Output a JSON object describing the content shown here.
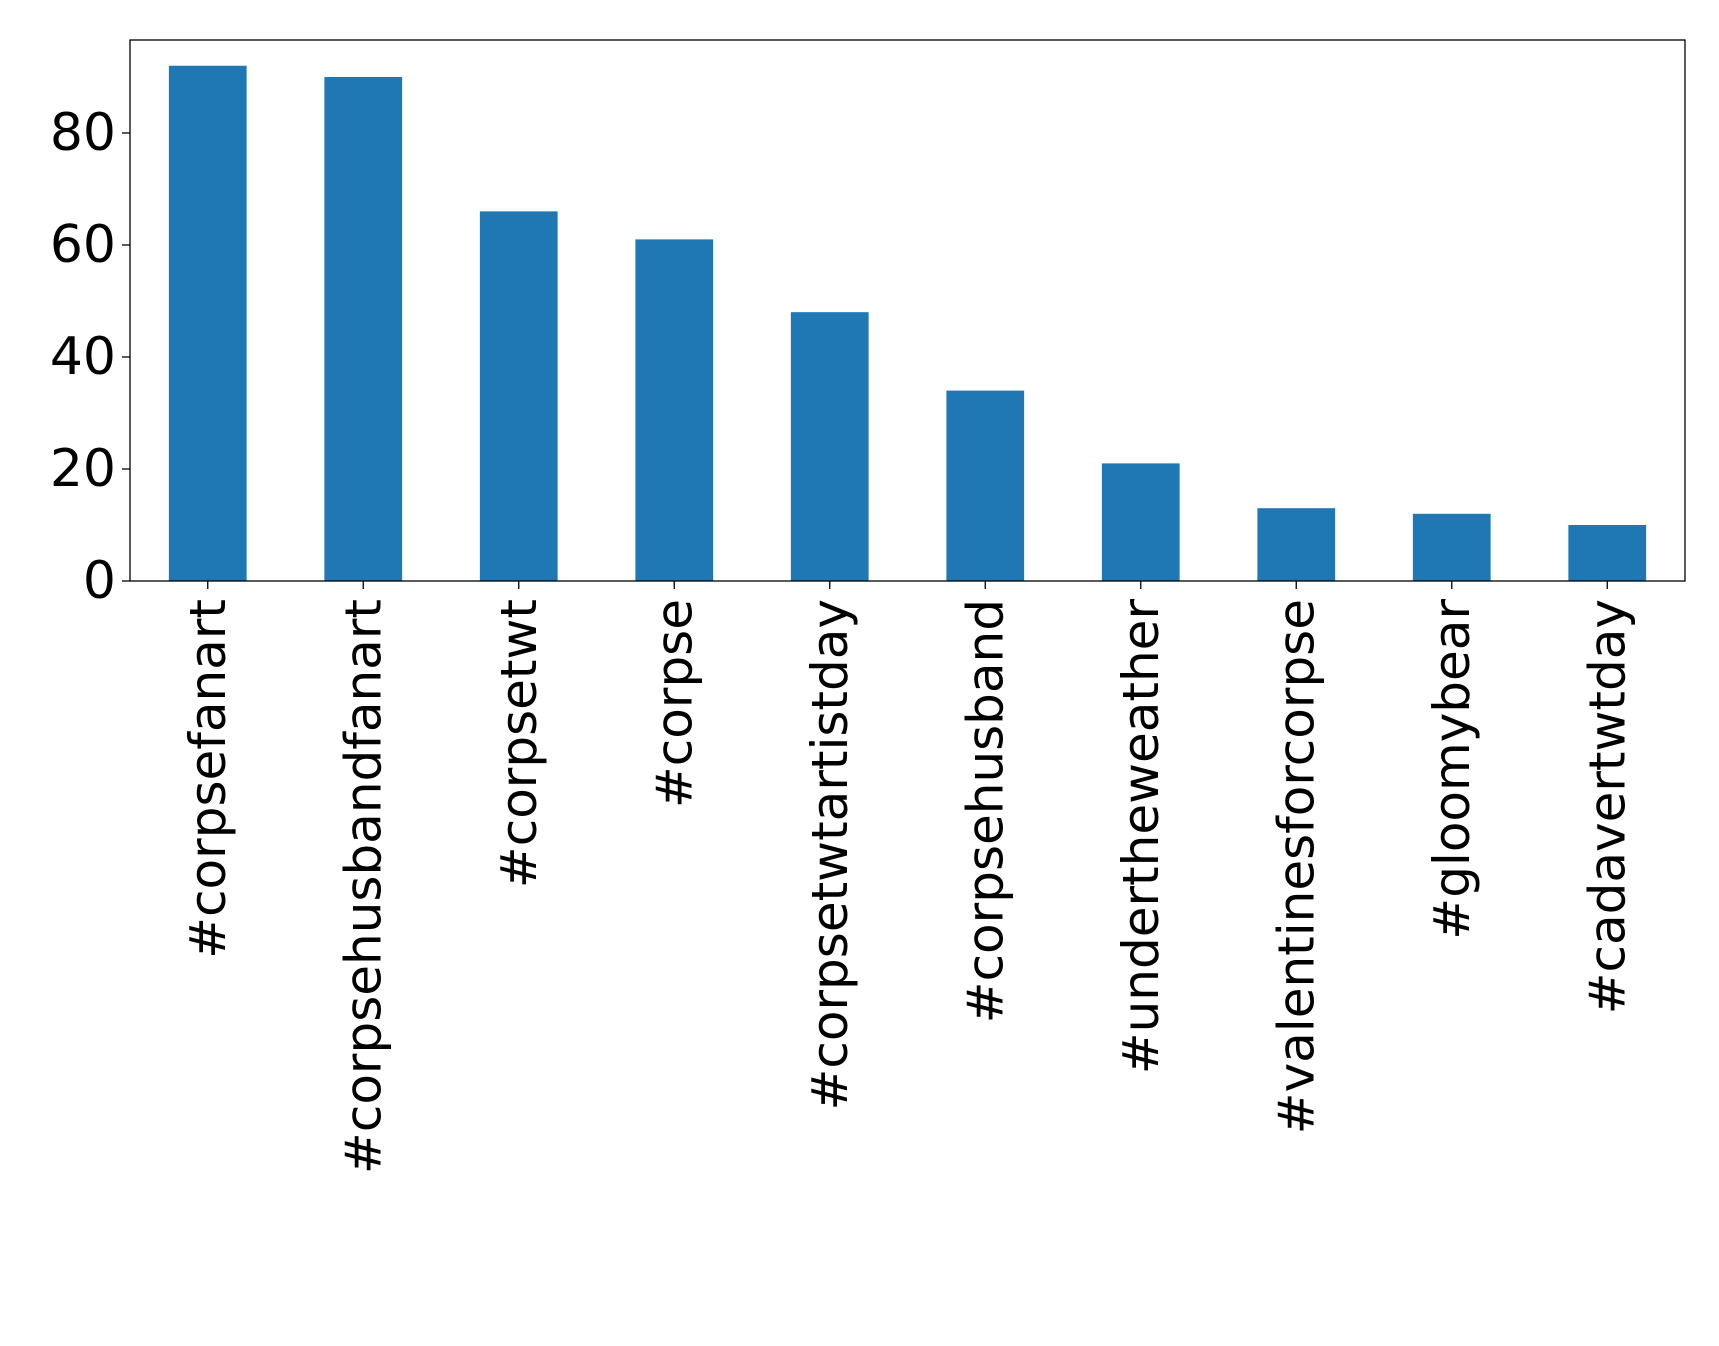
{
  "chart_data": {
    "type": "bar",
    "title": "",
    "xlabel": "",
    "ylabel": "",
    "categories": [
      "#corpsefanart",
      "#corpsehusbandfanart",
      "#corpsetwt",
      "#corpse",
      "#corpsetwtartistday",
      "#corpsehusband",
      "#undertheweather",
      "#valentinesforcorpse",
      "#gloomybear",
      "#cadavertwtday"
    ],
    "values": [
      92,
      90,
      66,
      61,
      48,
      34,
      21,
      13,
      12,
      10
    ],
    "ylim": [
      0,
      96.6
    ],
    "yticks": [
      0,
      20,
      40,
      60,
      80
    ],
    "ytick_labels": [
      "0",
      "20",
      "40",
      "60",
      "80"
    ],
    "grid": false,
    "legend": "none",
    "bar_color": "#1f77b4"
  }
}
